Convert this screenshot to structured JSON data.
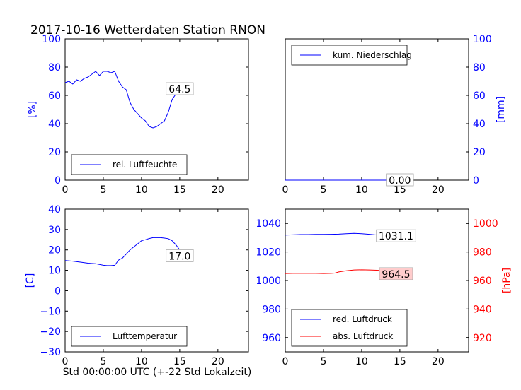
{
  "title": "2017-10-16 Wetterdaten Station RNON",
  "xlabel": "Std 00:00:00 UTC (+-22 Std Lokalzeit)",
  "colors": {
    "blue": "#0000ff",
    "red": "#ff0000",
    "anno_bg": "#ffcccc"
  },
  "chart_data": [
    {
      "type": "line",
      "panel": "top-left",
      "ylabel": "[%]",
      "xlim": [
        0,
        24
      ],
      "ylim": [
        0,
        100
      ],
      "xticks": [
        "0",
        "5",
        "10",
        "15",
        "20"
      ],
      "yticks": [
        "0",
        "20",
        "40",
        "60",
        "80",
        "100"
      ],
      "legend_position": "lower-left",
      "annotation": {
        "text": "64.5",
        "x": 15.0,
        "y": 64.5
      },
      "series": [
        {
          "name": "rel. Luftfeuchte",
          "color": "#0000ff",
          "x": [
            0,
            0.5,
            1,
            1.5,
            2,
            2.5,
            3,
            3.5,
            4,
            4.5,
            5,
            5.5,
            6,
            6.5,
            7,
            7.5,
            8,
            8.5,
            9,
            9.5,
            10,
            10.5,
            11,
            11.5,
            12,
            12.5,
            13,
            13.5,
            14,
            14.5,
            15,
            15.5,
            16,
            16.5
          ],
          "y": [
            69,
            70,
            68,
            71,
            70,
            72,
            73,
            75,
            77,
            74,
            77,
            77,
            76,
            77,
            70,
            66,
            64,
            55,
            50,
            47,
            44,
            42,
            38,
            37,
            38,
            40,
            42,
            48,
            57,
            61,
            63,
            64,
            64.5,
            64.5
          ]
        }
      ]
    },
    {
      "type": "line",
      "panel": "top-right",
      "ylabel": "[mm]",
      "xlim": [
        0,
        24
      ],
      "ylim": [
        0,
        100
      ],
      "xticks": [
        "0",
        "5",
        "10",
        "15",
        "20"
      ],
      "yticks": [
        "0",
        "20",
        "40",
        "60",
        "80",
        "100"
      ],
      "legend_position": "upper-left",
      "annotation": {
        "text": "0.00",
        "x": 15.0,
        "y": 0
      },
      "series": [
        {
          "name": "kum. Niederschlag",
          "color": "#0000ff",
          "x": [
            0,
            16.5
          ],
          "y": [
            0,
            0
          ]
        }
      ]
    },
    {
      "type": "line",
      "panel": "bottom-left",
      "ylabel": "[C]",
      "xlim": [
        0,
        24
      ],
      "ylim": [
        -30,
        40
      ],
      "xticks": [
        "0",
        "5",
        "10",
        "15",
        "20"
      ],
      "yticks": [
        "−30",
        "−20",
        "−10",
        "0",
        "10",
        "20",
        "30",
        "40"
      ],
      "legend_position": "lower-left",
      "annotation": {
        "text": "17.0",
        "x": 15.0,
        "y": 17.0
      },
      "series": [
        {
          "name": "Lufttemperatur",
          "color": "#0000ff",
          "x": [
            0,
            1,
            2,
            3,
            4,
            5,
            5.5,
            6,
            6.5,
            7,
            7.5,
            8,
            8.5,
            9,
            9.5,
            10,
            10.5,
            11,
            11.5,
            12,
            12.5,
            13,
            13.5,
            14,
            14.5,
            15,
            15.5,
            16,
            16.5
          ],
          "y": [
            14.8,
            14.5,
            14,
            13.5,
            13.2,
            12.5,
            12.3,
            12.3,
            12.5,
            15,
            16,
            18,
            20,
            21.5,
            23,
            24.5,
            25,
            25.6,
            26,
            26,
            26,
            25.8,
            25.5,
            24.5,
            22.5,
            20,
            18.5,
            17.5,
            17.0
          ]
        }
      ]
    },
    {
      "type": "line",
      "panel": "bottom-right",
      "ylabel": "[hPa]",
      "xlim": [
        0,
        24
      ],
      "ylim": [
        950,
        1050
      ],
      "y2lim": [
        910,
        1010
      ],
      "xticks": [
        "0",
        "5",
        "10",
        "15",
        "20"
      ],
      "yticks": [
        "960",
        "980",
        "1000",
        "1020",
        "1040"
      ],
      "y2ticks": [
        "920",
        "940",
        "960",
        "980",
        "1000"
      ],
      "legend_position": "lower-left",
      "annotations": [
        {
          "text": "1031.1",
          "x": 14.5,
          "y": 1031.1,
          "axis": "left"
        },
        {
          "text": "964.5",
          "x": 14.5,
          "y": 964.5,
          "axis": "right"
        }
      ],
      "series": [
        {
          "name": "red. Luftdruck",
          "color": "#0000ff",
          "axis": "left",
          "x": [
            0,
            1,
            2,
            3,
            4,
            5,
            6,
            7,
            8,
            9,
            10,
            11,
            12,
            13,
            14,
            15,
            16,
            16.5
          ],
          "y": [
            1031.8,
            1032.0,
            1032.2,
            1032.2,
            1032.3,
            1032.3,
            1032.4,
            1032.5,
            1032.8,
            1033.0,
            1032.8,
            1032.4,
            1031.9,
            1031.5,
            1031.3,
            1031.2,
            1031.1,
            1031.1
          ]
        },
        {
          "name": "abs. Luftdruck",
          "color": "#ff0000",
          "axis": "right",
          "x": [
            0,
            1,
            2,
            3,
            4,
            5,
            6,
            6.5,
            7,
            8,
            9,
            10,
            11,
            12,
            13,
            14,
            15,
            16,
            16.5
          ],
          "y": [
            964.9,
            965.0,
            965.0,
            965.1,
            965.0,
            964.9,
            965.0,
            965.2,
            966.0,
            966.8,
            967.4,
            967.5,
            967.4,
            967.2,
            966.8,
            966.3,
            965.5,
            964.9,
            964.5
          ]
        }
      ]
    }
  ]
}
